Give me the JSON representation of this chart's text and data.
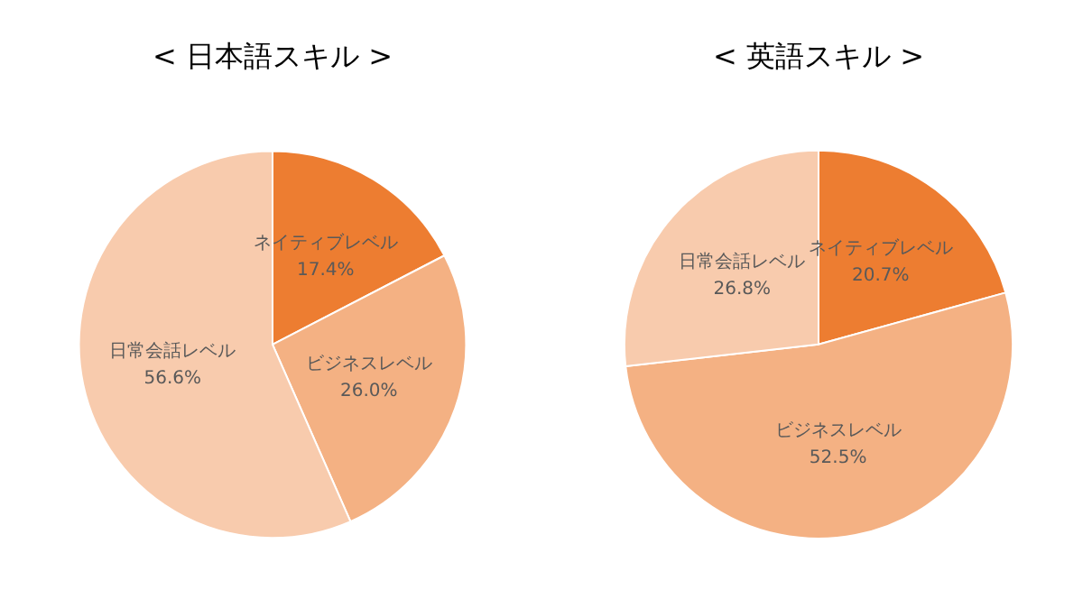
{
  "chart_data": [
    {
      "type": "pie",
      "title": "< 日本語スキル >",
      "categories": [
        "ネイティブレベル",
        "ビジネスレベル",
        "日常会話レベル"
      ],
      "values": [
        17.4,
        26.0,
        56.6
      ],
      "value_labels": [
        "17.4%",
        "26.0%",
        "56.6%"
      ],
      "colors": [
        "#ed7d31",
        "#f4b183",
        "#f8cbad"
      ],
      "legend": false
    },
    {
      "type": "pie",
      "title": "< 英語スキル >",
      "categories": [
        "ネイティブレベル",
        "ビジネスレベル",
        "日常会話レベル"
      ],
      "values": [
        20.7,
        52.5,
        26.8
      ],
      "value_labels": [
        "20.7%",
        "52.5%",
        "26.8%"
      ],
      "colors": [
        "#ed7d31",
        "#f4b183",
        "#f8cbad"
      ],
      "legend": false
    }
  ]
}
